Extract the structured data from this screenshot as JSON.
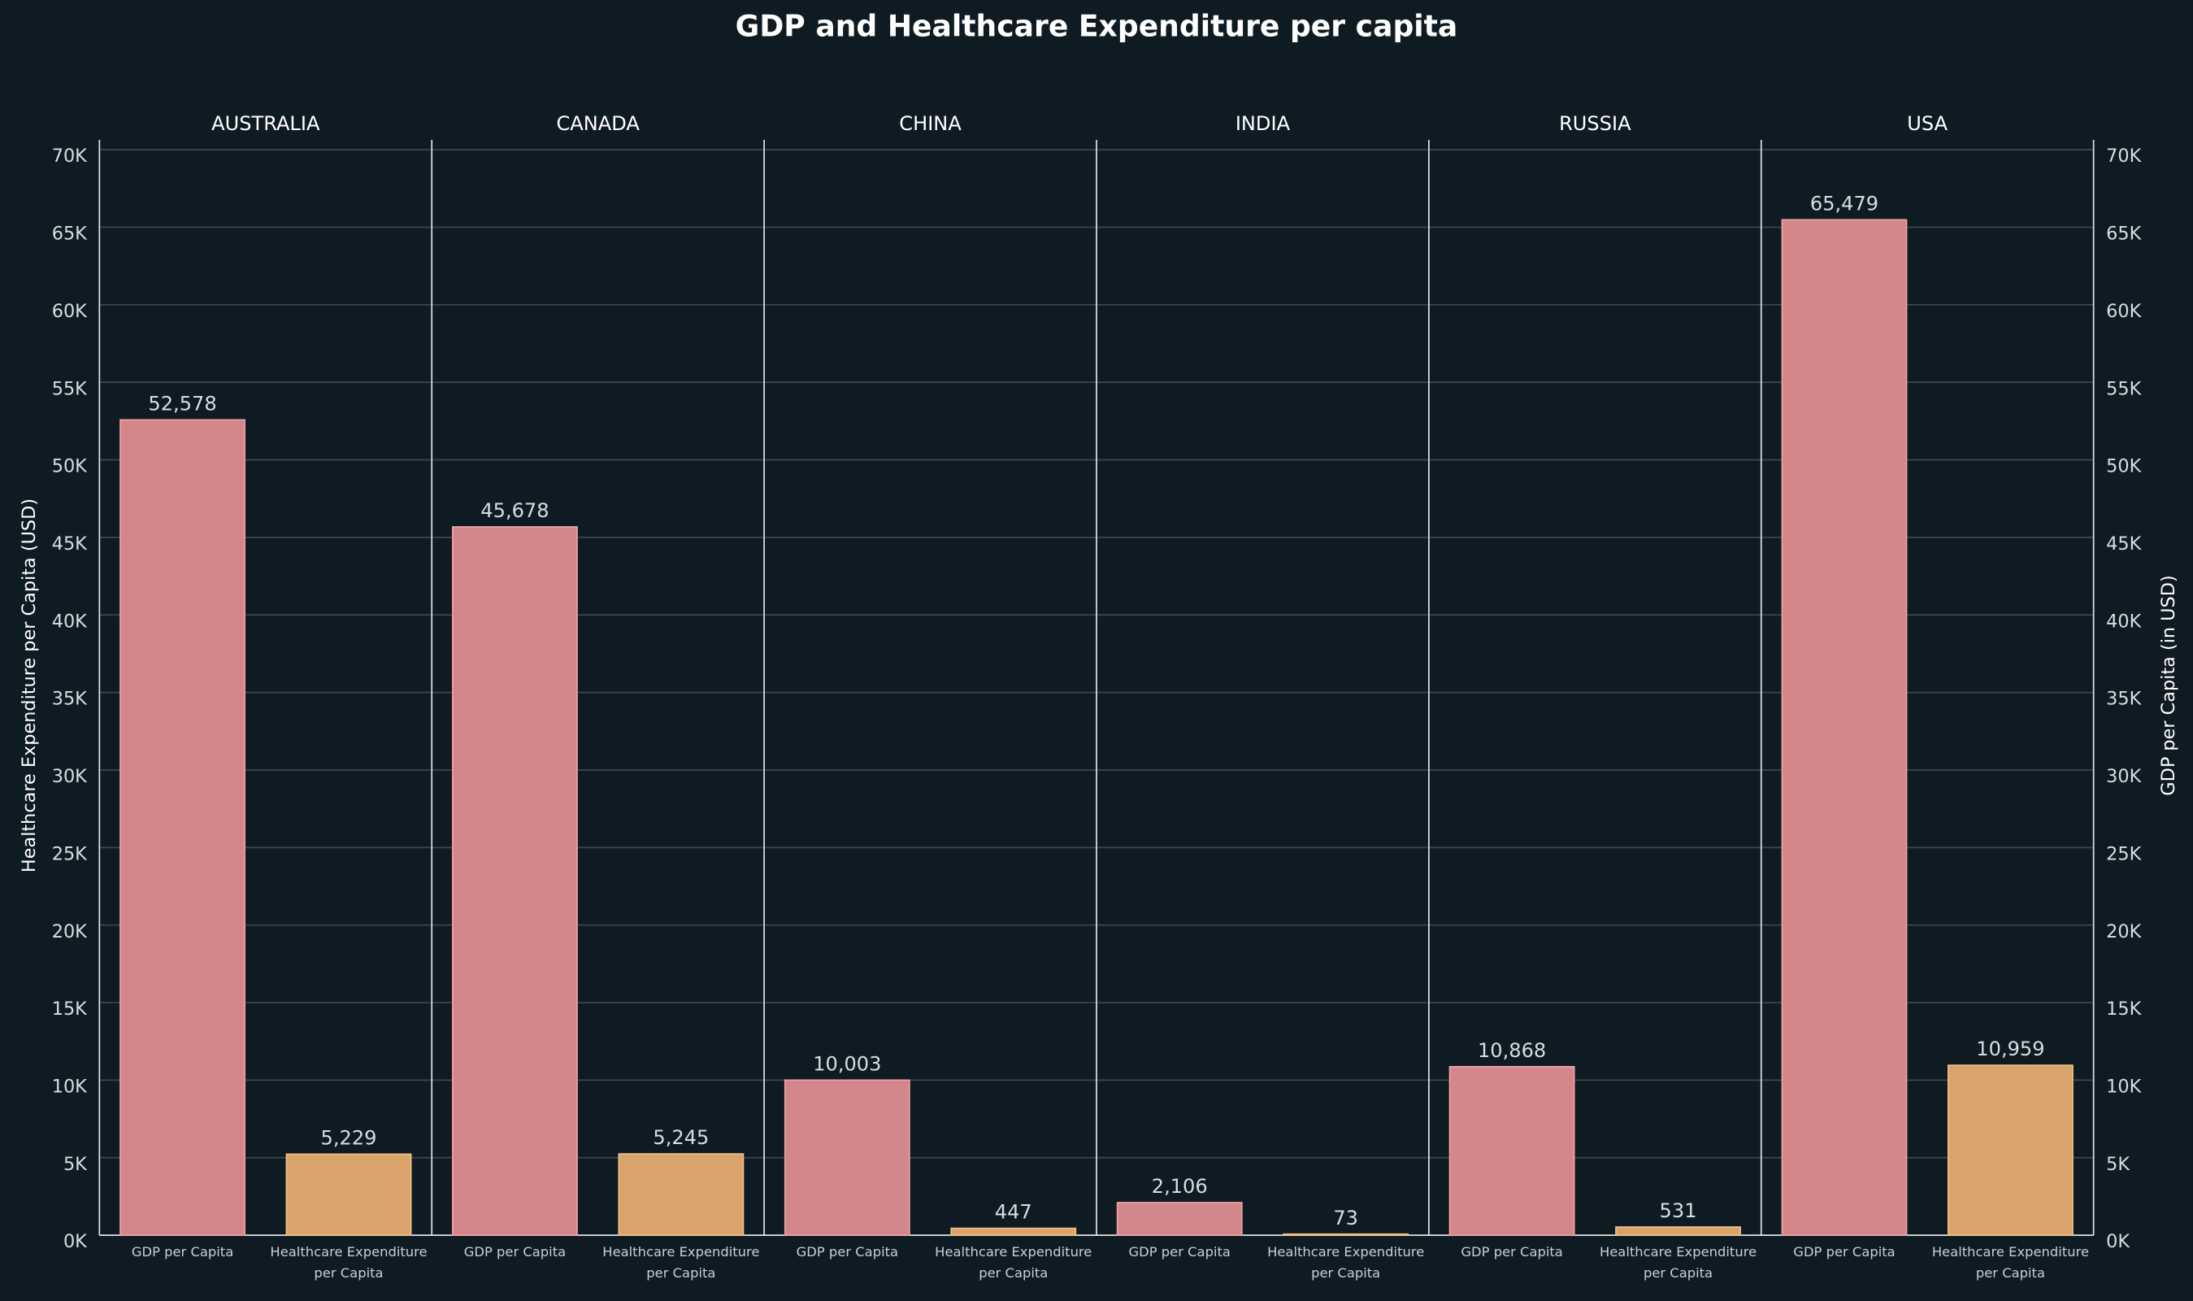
{
  "chart_data": {
    "type": "bar",
    "title": "GDP and Healthcare Expenditure per capita",
    "ylabel": "Healthcare Expenditure per Capita (USD)",
    "y2label": "GDP per Capita (in USD)",
    "categories": [
      "AUSTRALIA",
      "CANADA",
      "CHINA",
      "INDIA",
      "RUSSIA",
      "USA"
    ],
    "series": [
      {
        "name": "GDP per Capita",
        "color": "#d4878a",
        "axis": "y2",
        "values": [
          52578,
          45678,
          10003,
          2106,
          10868,
          65479
        ],
        "value_labels": [
          "52,578",
          "45,678",
          "10,003",
          "2,106",
          "10,868",
          "65,479"
        ]
      },
      {
        "name": "Healthcare Expenditure per Capita",
        "color": "#d9a46c",
        "values": [
          5229,
          5245,
          447,
          73,
          531,
          10959
        ],
        "value_labels": [
          "5,229",
          "5,245",
          "447",
          "73",
          "531",
          "10,959"
        ]
      }
    ],
    "ylim": [
      0,
      70000
    ],
    "yticks": [
      {
        "value": 0,
        "label": "0K"
      },
      {
        "value": 5000,
        "label": "5K"
      },
      {
        "value": 10000,
        "label": "10K"
      },
      {
        "value": 15000,
        "label": "15K"
      },
      {
        "value": 20000,
        "label": "20K"
      },
      {
        "value": 25000,
        "label": "25K"
      },
      {
        "value": 30000,
        "label": "30K"
      },
      {
        "value": 35000,
        "label": "35K"
      },
      {
        "value": 40000,
        "label": "40K"
      },
      {
        "value": 45000,
        "label": "45K"
      },
      {
        "value": 50000,
        "label": "50K"
      },
      {
        "value": 55000,
        "label": "55K"
      },
      {
        "value": 60000,
        "label": "60K"
      },
      {
        "value": 65000,
        "label": "65K"
      },
      {
        "value": 70000,
        "label": "70K"
      }
    ],
    "y2lim": [
      0,
      70000
    ],
    "y2ticks": [
      {
        "value": 0,
        "label": "0K"
      },
      {
        "value": 5000,
        "label": "5K"
      },
      {
        "value": 10000,
        "label": "10K"
      },
      {
        "value": 15000,
        "label": "15K"
      },
      {
        "value": 20000,
        "label": "20K"
      },
      {
        "value": 25000,
        "label": "25K"
      },
      {
        "value": 30000,
        "label": "30K"
      },
      {
        "value": 35000,
        "label": "35K"
      },
      {
        "value": 40000,
        "label": "40K"
      },
      {
        "value": 45000,
        "label": "45K"
      },
      {
        "value": 50000,
        "label": "50K"
      },
      {
        "value": 55000,
        "label": "55K"
      },
      {
        "value": 60000,
        "label": "60K"
      },
      {
        "value": 65000,
        "label": "65K"
      },
      {
        "value": 70000,
        "label": "70K"
      }
    ],
    "grid": true
  }
}
